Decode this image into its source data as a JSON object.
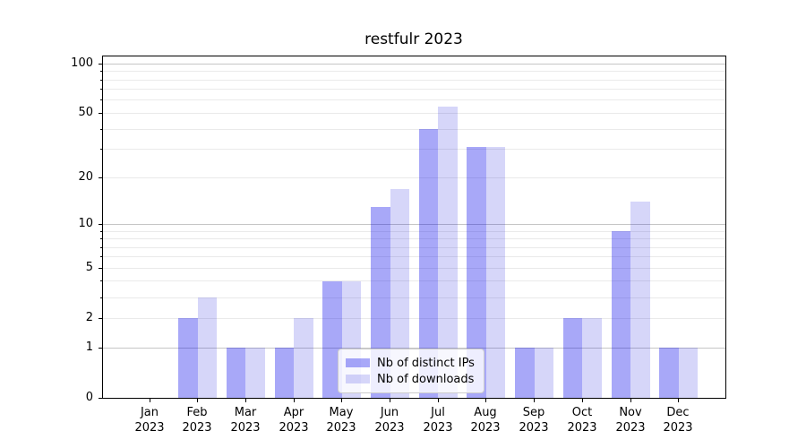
{
  "figure": {
    "title": "restfulr 2023"
  },
  "chart_data": {
    "type": "bar",
    "title": "restfulr 2023",
    "categories": [
      "Jan",
      "Feb",
      "Mar",
      "Apr",
      "May",
      "Jun",
      "Jul",
      "Aug",
      "Sep",
      "Oct",
      "Nov",
      "Dec"
    ],
    "year_label": "2023",
    "series": [
      {
        "name": "Nb of distinct IPs",
        "values": [
          0,
          2,
          1,
          1,
          4,
          13,
          40,
          31,
          1,
          2,
          9,
          1
        ],
        "color_rgba": "rgba(0,0,235,0.34)",
        "color_hex": "#a8a8f8"
      },
      {
        "name": "Nb of downloads",
        "values": [
          0,
          3,
          1,
          2,
          4,
          17,
          55,
          31,
          1,
          2,
          14,
          1
        ],
        "color_rgba": "rgba(0,0,215,0.16)",
        "color_hex": "#d8d8f7"
      }
    ],
    "xlabel": "",
    "ylabel": "",
    "yscale": "log10(value+1)",
    "ylim": [
      0,
      112
    ],
    "y_tick_labels": [
      "100",
      "50",
      "20",
      "10",
      "5",
      "2",
      "1",
      "0"
    ],
    "y_minor_gridlines": [
      2,
      3,
      4,
      5,
      6,
      7,
      8,
      9,
      20,
      30,
      40,
      50,
      60,
      70,
      80,
      90
    ],
    "y_major_gridlines": [
      1,
      10,
      100
    ],
    "grid": true,
    "legend_position": "lower center",
    "colors": {
      "major_grid": "#c6c6c6",
      "minor_grid": "#eaeaea",
      "axis": "#000000"
    }
  }
}
